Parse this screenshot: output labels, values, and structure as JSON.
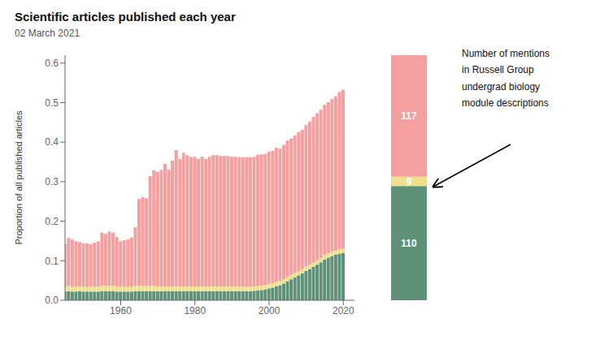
{
  "chart_data": [
    {
      "type": "bar",
      "title": "Scientific articles published each year",
      "subtitle": "02 March 2021",
      "ylabel": "Proportion of all published articles",
      "stacked": true,
      "xlim": [
        1945,
        2023
      ],
      "xticks": [
        1960,
        1980,
        2000,
        2020
      ],
      "ylim": [
        0.0,
        0.62
      ],
      "yticks": [
        {
          "value": 0,
          "label": "0.0"
        },
        0.1,
        0.2,
        0.3,
        0.4,
        0.5,
        0.6
      ],
      "x": [
        1945,
        1946,
        1947,
        1948,
        1949,
        1950,
        1951,
        1952,
        1953,
        1954,
        1955,
        1956,
        1957,
        1958,
        1959,
        1960,
        1961,
        1962,
        1963,
        1964,
        1965,
        1966,
        1967,
        1968,
        1969,
        1970,
        1971,
        1972,
        1973,
        1974,
        1975,
        1976,
        1977,
        1978,
        1979,
        1980,
        1981,
        1982,
        1983,
        1984,
        1985,
        1986,
        1987,
        1988,
        1989,
        1990,
        1991,
        1992,
        1993,
        1994,
        1995,
        1996,
        1997,
        1998,
        1999,
        2000,
        2001,
        2002,
        2003,
        2004,
        2005,
        2006,
        2007,
        2008,
        2009,
        2010,
        2011,
        2012,
        2013,
        2014,
        2015,
        2016,
        2017,
        2018,
        2019,
        2020
      ],
      "series": [
        {
          "color": "#5F9178",
          "values": [
            0.022,
            0.023,
            0.022,
            0.022,
            0.023,
            0.022,
            0.022,
            0.022,
            0.022,
            0.022,
            0.023,
            0.023,
            0.023,
            0.023,
            0.022,
            0.022,
            0.022,
            0.022,
            0.022,
            0.023,
            0.023,
            0.023,
            0.023,
            0.023,
            0.023,
            0.023,
            0.023,
            0.023,
            0.023,
            0.023,
            0.023,
            0.023,
            0.023,
            0.023,
            0.023,
            0.023,
            0.023,
            0.023,
            0.023,
            0.023,
            0.023,
            0.023,
            0.023,
            0.023,
            0.023,
            0.023,
            0.023,
            0.023,
            0.023,
            0.023,
            0.023,
            0.024,
            0.025,
            0.026,
            0.027,
            0.03,
            0.032,
            0.035,
            0.038,
            0.042,
            0.048,
            0.053,
            0.058,
            0.063,
            0.068,
            0.074,
            0.079,
            0.085,
            0.09,
            0.096,
            0.103,
            0.108,
            0.112,
            0.115,
            0.118,
            0.12
          ]
        },
        {
          "color": "#F0E08A",
          "values": [
            0.012,
            0.013,
            0.012,
            0.012,
            0.012,
            0.012,
            0.012,
            0.012,
            0.012,
            0.012,
            0.013,
            0.013,
            0.013,
            0.013,
            0.013,
            0.012,
            0.012,
            0.012,
            0.012,
            0.013,
            0.013,
            0.013,
            0.013,
            0.013,
            0.013,
            0.012,
            0.012,
            0.012,
            0.012,
            0.012,
            0.012,
            0.012,
            0.012,
            0.012,
            0.012,
            0.012,
            0.012,
            0.012,
            0.012,
            0.012,
            0.012,
            0.012,
            0.012,
            0.012,
            0.012,
            0.012,
            0.012,
            0.011,
            0.011,
            0.011,
            0.011,
            0.011,
            0.011,
            0.011,
            0.011,
            0.011,
            0.011,
            0.011,
            0.011,
            0.011,
            0.011,
            0.011,
            0.011,
            0.011,
            0.011,
            0.011,
            0.011,
            0.011,
            0.011,
            0.011,
            0.011,
            0.011,
            0.011,
            0.011,
            0.011,
            0.01
          ]
        },
        {
          "color": "#F4A0A0",
          "values": [
            0.108,
            0.122,
            0.12,
            0.115,
            0.112,
            0.11,
            0.11,
            0.108,
            0.112,
            0.115,
            0.135,
            0.132,
            0.138,
            0.135,
            0.125,
            0.115,
            0.118,
            0.12,
            0.125,
            0.148,
            0.22,
            0.225,
            0.222,
            0.278,
            0.293,
            0.29,
            0.295,
            0.31,
            0.295,
            0.318,
            0.345,
            0.322,
            0.338,
            0.332,
            0.328,
            0.328,
            0.322,
            0.328,
            0.322,
            0.328,
            0.332,
            0.332,
            0.33,
            0.33,
            0.33,
            0.328,
            0.328,
            0.328,
            0.328,
            0.328,
            0.328,
            0.328,
            0.332,
            0.332,
            0.332,
            0.335,
            0.335,
            0.34,
            0.335,
            0.34,
            0.345,
            0.345,
            0.348,
            0.352,
            0.352,
            0.358,
            0.362,
            0.368,
            0.372,
            0.375,
            0.38,
            0.382,
            0.386,
            0.39,
            0.398,
            0.402
          ]
        }
      ]
    },
    {
      "type": "bar",
      "stacked": true,
      "data_labels": true,
      "tick_labels": false,
      "annotation": "Number of mentions\nin Russell Group\nundergrad biology\nmodule descriptions",
      "categories": [
        null
      ],
      "series": [
        {
          "color": "#5F9178",
          "values": [
            110
          ]
        },
        {
          "color": "#F0E08A",
          "values": [
            9
          ]
        },
        {
          "color": "#F4A0A0",
          "values": [
            117
          ]
        }
      ]
    }
  ]
}
